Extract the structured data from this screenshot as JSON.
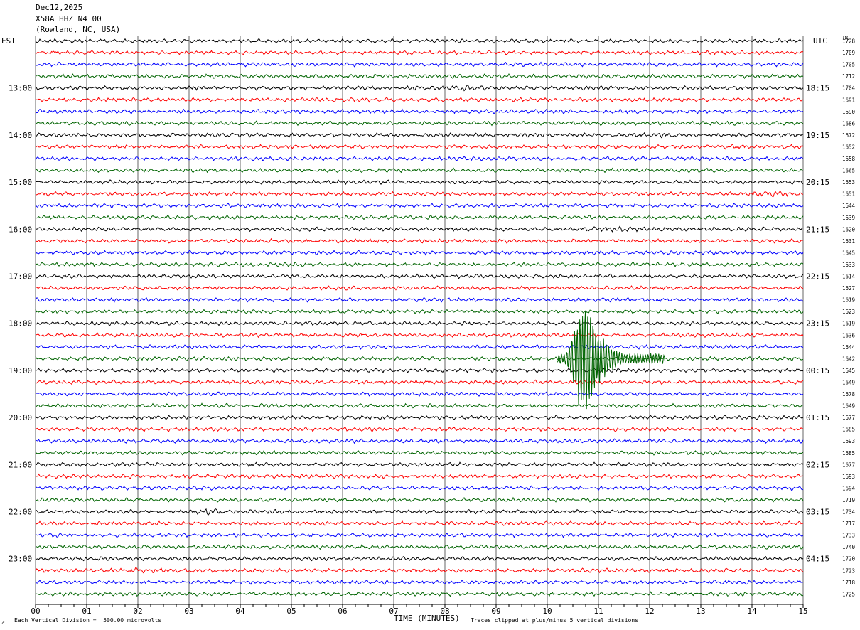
{
  "header": {
    "date": "Dec12,2025",
    "station": "X58A HHZ N4 00",
    "location": "(Rowland, NC, USA)"
  },
  "left_tz": "EST",
  "right_tz": "UTC",
  "dc_label": "DC",
  "footer": {
    "mark": "↗",
    "scale_note": "Each Vertical Division =  500.00 microvolts",
    "clip_note": "Traces clipped at plus/minus 5 vertical divisions"
  },
  "colors": {
    "trace_cycle": [
      "#000000",
      "#ff0000",
      "#0000ff",
      "#006400"
    ],
    "grid": "#000000"
  },
  "chart_data": {
    "type": "line",
    "subtype": "helicorder",
    "xlabel": "TIME (MINUTES)",
    "xlim": [
      0,
      15
    ],
    "x_ticks": [
      "00",
      "01",
      "02",
      "03",
      "04",
      "05",
      "06",
      "07",
      "08",
      "09",
      "10",
      "11",
      "12",
      "13",
      "14",
      "15"
    ],
    "rows_per_hour": 4,
    "row_minutes": 15,
    "left_hour_labels": [
      "13:00",
      "14:00",
      "15:00",
      "16:00",
      "17:00",
      "18:00",
      "19:00",
      "20:00",
      "21:00",
      "22:00",
      "23:00"
    ],
    "right_hour_labels": [
      "18:15",
      "19:15",
      "20:15",
      "21:15",
      "22:15",
      "23:15",
      "00:15",
      "01:15",
      "02:15",
      "03:15",
      "04:15"
    ],
    "dc_offsets": [
      1728,
      1709,
      1705,
      1712,
      1704,
      1691,
      1690,
      1686,
      1672,
      1652,
      1658,
      1665,
      1653,
      1651,
      1644,
      1639,
      1620,
      1631,
      1645,
      1633,
      1614,
      1627,
      1619,
      1623,
      1619,
      1636,
      1644,
      1642,
      1645,
      1649,
      1678,
      1649,
      1677,
      1685,
      1693,
      1685,
      1677,
      1693,
      1694,
      1719,
      1734,
      1717,
      1733,
      1740,
      1720,
      1723,
      1718,
      1725
    ],
    "events": [
      {
        "row": 4,
        "start_min": 8.0,
        "end_min": 8.8,
        "amplitude": 1.6
      },
      {
        "row": 8,
        "start_min": 12.1,
        "end_min": 12.6,
        "amplitude": 1.4
      },
      {
        "row": 9,
        "start_min": 13.2,
        "end_min": 14.0,
        "amplitude": 1.4
      },
      {
        "row": 13,
        "start_min": 13.8,
        "end_min": 15.0,
        "amplitude": 1.5
      },
      {
        "row": 16,
        "start_min": 10.5,
        "end_min": 11.8,
        "amplitude": 1.4
      },
      {
        "row": 40,
        "start_min": 3.0,
        "end_min": 3.7,
        "amplitude": 1.9
      },
      {
        "row": 45,
        "start_min": 0.8,
        "end_min": 3.5,
        "amplitude": 1.4
      },
      {
        "row": 27,
        "start_min": 10.2,
        "end_min": 12.3,
        "amplitude": 4.0,
        "main_event": true
      }
    ]
  }
}
